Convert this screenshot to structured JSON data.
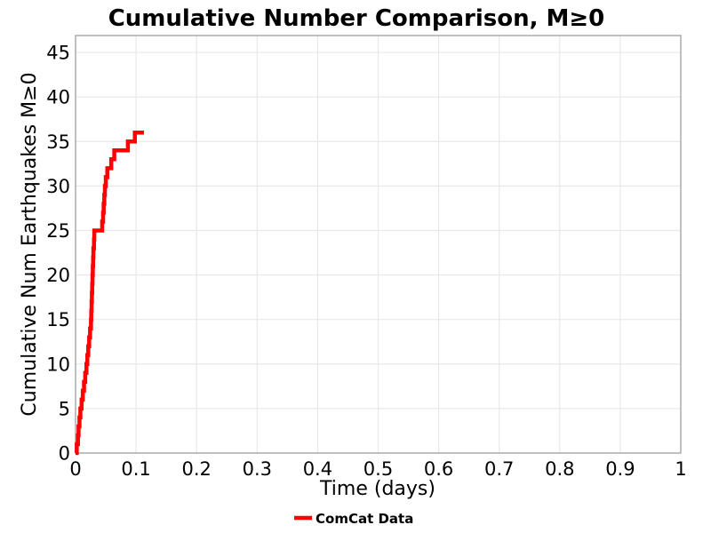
{
  "chart": {
    "title": "Cumulative Number Comparison, M≥0",
    "x_axis_title": "Time (days)",
    "y_axis_title": "Cumulative Num Earthquakes M≥0",
    "legend": {
      "items": [
        {
          "label": "ComCat Data",
          "color": "#ff0000"
        }
      ]
    }
  },
  "colors": {
    "series_red": "#ff0000",
    "gridline": "#e8e8e8",
    "spine": "#a6a6a6",
    "text": "#000000",
    "background": "#ffffff"
  },
  "chart_data": {
    "type": "line",
    "subtype": "cumulative-step",
    "title": "Cumulative Number Comparison, M≥0",
    "xlabel": "Time (days)",
    "ylabel": "Cumulative Num Earthquakes M≥0",
    "xlim": [
      0,
      1
    ],
    "ylim": [
      0,
      46.9
    ],
    "grid": true,
    "legend_position": "bottom-center",
    "x_ticks": {
      "values": [
        0,
        0.1,
        0.2,
        0.3,
        0.4,
        0.5,
        0.6,
        0.7,
        0.8,
        0.9,
        1
      ],
      "labels": [
        "0",
        "0.1",
        "0.2",
        "0.3",
        "0.4",
        "0.5",
        "0.6",
        "0.7",
        "0.8",
        "0.9",
        "1"
      ]
    },
    "y_ticks": {
      "values": [
        0,
        5,
        10,
        15,
        20,
        25,
        30,
        35,
        40,
        45
      ],
      "labels": [
        "0",
        "5",
        "10",
        "15",
        "20",
        "25",
        "30",
        "35",
        "40",
        "45"
      ]
    },
    "series": [
      {
        "name": "ComCat Data",
        "color": "#ff0000",
        "line_width": 4.5,
        "draw_style": "step-post",
        "start_point": [
          0,
          0
        ],
        "event_times_days": [
          0.002,
          0.004,
          0.005,
          0.0065,
          0.008,
          0.01,
          0.012,
          0.014,
          0.016,
          0.018,
          0.0195,
          0.021,
          0.0225,
          0.024,
          0.0255,
          0.026,
          0.0265,
          0.027,
          0.0275,
          0.028,
          0.0285,
          0.029,
          0.0295,
          0.0305,
          0.031,
          0.044,
          0.0455,
          0.0465,
          0.0475,
          0.0485,
          0.05,
          0.0525,
          0.059,
          0.064,
          0.0865,
          0.098
        ],
        "final_time_days": 0.113,
        "final_cumulative_count": 36
      }
    ]
  }
}
